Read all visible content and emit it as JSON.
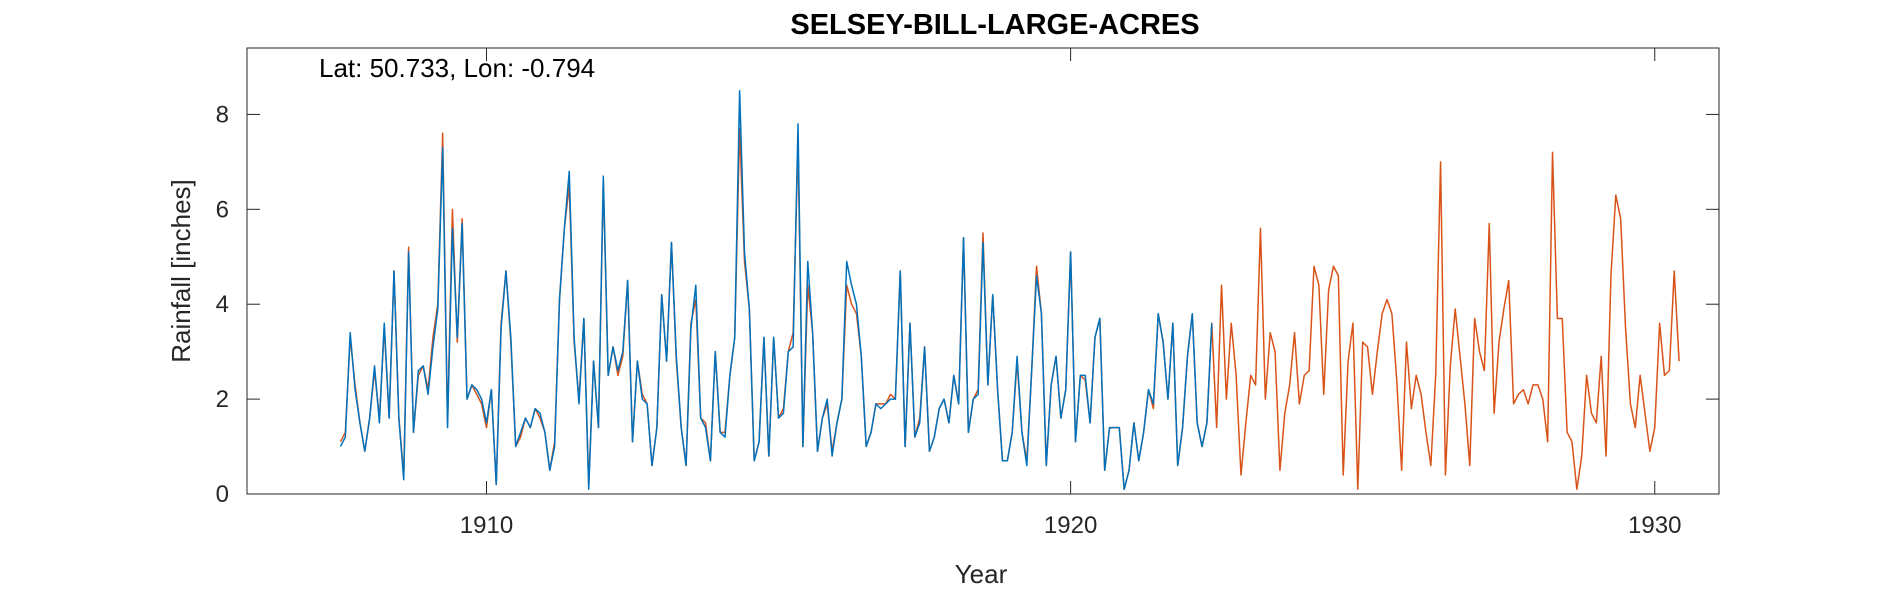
{
  "chart_data": {
    "type": "line",
    "title": "SELSEY-BILL-LARGE-ACRES",
    "annotation": "Lat: 50.733, Lon: -0.794",
    "xlabel": "Year",
    "ylabel": "Rainfall [inches]",
    "xlim": [
      1905.9,
      1931.1
    ],
    "ylim": [
      0,
      9.4
    ],
    "xticks": [
      1910,
      1920,
      1930
    ],
    "yticks": [
      0,
      2,
      4,
      6,
      8
    ],
    "grid": false,
    "series": [
      {
        "color": "#D95319",
        "start": 1907.5,
        "step": 0.0833333,
        "values": [
          1.1,
          1.3,
          3.3,
          2.3,
          1.5,
          0.9,
          1.6,
          2.6,
          1.6,
          3.5,
          1.6,
          4.7,
          1.6,
          0.4,
          5.2,
          1.3,
          2.5,
          2.7,
          2.2,
          3.3,
          4.0,
          7.6,
          1.5,
          6.0,
          3.2,
          5.8,
          2.0,
          2.3,
          2.1,
          1.9,
          1.4,
          2.2,
          0.2,
          3.6,
          4.7,
          3.2,
          1.0,
          1.2,
          1.6,
          1.4,
          1.8,
          1.6,
          1.3,
          0.5,
          1.1,
          4.1,
          5.6,
          6.5,
          3.2,
          2.0,
          3.7,
          0.2,
          2.8,
          1.4,
          6.6,
          2.5,
          3.1,
          2.5,
          2.9,
          4.5,
          1.1,
          2.8,
          2.1,
          1.9,
          0.6,
          1.4,
          4.2,
          2.8,
          5.3,
          2.8,
          1.4,
          0.6,
          3.6,
          4.1,
          1.6,
          1.5,
          0.7,
          3.0,
          1.3,
          1.3,
          2.5,
          3.3,
          7.7,
          4.9,
          3.9,
          0.7,
          1.1,
          3.3,
          0.8,
          3.3,
          1.6,
          1.8,
          3.0,
          3.4,
          7.4,
          1.0,
          4.4,
          3.4,
          0.9,
          1.6,
          1.9,
          0.9,
          1.5,
          2.0,
          4.4,
          4.0,
          3.8,
          2.9,
          1.0,
          1.3,
          1.9,
          1.9,
          1.9,
          2.1,
          2.0,
          4.7,
          1.0,
          3.6,
          1.2,
          1.6,
          3.1,
          0.9,
          1.2,
          1.8,
          2.0,
          1.5,
          2.5,
          1.9,
          5.4,
          1.3,
          2.0,
          2.2,
          5.5,
          2.3,
          4.2,
          2.2,
          0.7,
          0.7,
          1.3,
          2.8,
          1.3,
          0.7,
          2.6,
          4.8,
          3.8,
          0.6,
          2.3,
          2.9,
          1.6,
          2.2,
          5.1,
          1.1,
          2.5,
          2.4,
          1.5,
          3.3,
          3.7,
          0.5,
          1.4,
          1.4,
          1.4,
          0.1,
          0.5,
          1.5,
          0.7,
          1.3,
          2.2,
          1.8,
          3.8,
          3.2,
          2.0,
          3.6,
          0.6,
          1.4,
          2.9,
          3.8,
          1.5,
          1.0,
          1.5,
          3.6,
          1.4,
          4.4,
          2.0,
          3.6,
          2.5,
          0.4,
          1.5,
          2.5,
          2.3,
          5.6,
          2.0,
          3.4,
          3.0,
          0.5,
          1.7,
          2.3,
          3.4,
          1.9,
          2.5,
          2.6,
          4.8,
          4.4,
          2.1,
          4.3,
          4.8,
          4.6,
          0.4,
          2.8,
          3.6,
          0.1,
          3.2,
          3.1,
          2.1,
          3.0,
          3.8,
          4.1,
          3.8,
          2.4,
          0.5,
          3.2,
          1.8,
          2.5,
          2.1,
          1.3,
          0.6,
          2.5,
          7.0,
          0.4,
          2.7,
          3.9,
          2.9,
          1.9,
          0.6,
          3.7,
          3.0,
          2.6,
          5.7,
          1.7,
          3.2,
          3.9,
          4.5,
          1.9,
          2.1,
          2.2,
          1.9,
          2.3,
          2.3,
          2.0,
          1.1,
          7.2,
          3.7,
          3.7,
          1.3,
          1.1,
          0.1,
          0.8,
          2.5,
          1.7,
          1.5,
          2.9,
          0.8,
          4.6,
          6.3,
          5.8,
          3.5,
          1.9,
          1.4,
          2.5,
          1.7,
          0.9,
          1.4,
          3.6,
          2.5,
          2.6,
          4.7,
          2.8
        ]
      },
      {
        "color": "#0072BD",
        "start": 1907.5,
        "step": 0.0833333,
        "values": [
          1.0,
          1.2,
          3.4,
          2.2,
          1.5,
          0.9,
          1.6,
          2.7,
          1.5,
          3.6,
          1.6,
          4.7,
          1.6,
          0.3,
          5.1,
          1.3,
          2.6,
          2.7,
          2.1,
          3.1,
          3.9,
          7.3,
          1.4,
          5.6,
          3.3,
          5.7,
          2.0,
          2.3,
          2.2,
          2.0,
          1.5,
          2.2,
          0.2,
          3.5,
          4.7,
          3.3,
          1.0,
          1.3,
          1.6,
          1.4,
          1.8,
          1.7,
          1.3,
          0.5,
          1.0,
          4.1,
          5.6,
          6.8,
          3.3,
          1.9,
          3.7,
          0.1,
          2.8,
          1.4,
          6.7,
          2.5,
          3.1,
          2.6,
          3.0,
          4.5,
          1.1,
          2.8,
          2.0,
          1.9,
          0.6,
          1.4,
          4.2,
          2.8,
          5.3,
          2.9,
          1.4,
          0.6,
          3.5,
          4.4,
          1.6,
          1.4,
          0.7,
          3.0,
          1.3,
          1.2,
          2.5,
          3.3,
          8.5,
          5.1,
          3.9,
          0.7,
          1.1,
          3.3,
          0.8,
          3.3,
          1.6,
          1.7,
          3.0,
          3.1,
          7.8,
          1.0,
          4.9,
          3.4,
          0.9,
          1.6,
          2.0,
          0.8,
          1.5,
          2.0,
          4.9,
          4.4,
          4.0,
          2.9,
          1.0,
          1.3,
          1.9,
          1.8,
          1.9,
          2.0,
          2.0,
          4.7,
          1.0,
          3.6,
          1.2,
          1.5,
          3.1,
          0.9,
          1.2,
          1.8,
          2.0,
          1.5,
          2.5,
          1.9,
          5.4,
          1.3,
          2.0,
          2.1,
          5.3,
          2.3,
          4.2,
          2.2,
          0.7,
          0.7,
          1.3,
          2.9,
          1.3,
          0.6,
          2.6,
          4.6,
          3.8,
          0.6,
          2.3,
          2.9,
          1.6,
          2.2,
          5.1,
          1.1,
          2.5,
          2.5,
          1.5,
          3.3,
          3.7,
          0.5,
          1.4,
          1.4,
          1.4,
          0.1,
          0.5,
          1.5,
          0.7,
          1.3,
          2.2,
          1.9,
          3.8,
          3.2,
          2.0,
          3.6,
          0.6,
          1.4,
          2.9,
          3.8,
          1.5,
          1.0,
          1.5,
          3.6
        ]
      }
    ]
  }
}
